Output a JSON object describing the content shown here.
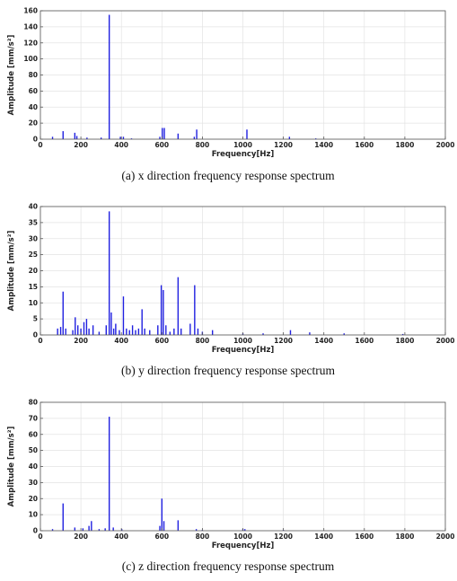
{
  "chart_data": [
    {
      "type": "bar",
      "title": "",
      "xlabel": "Frequency[Hz]",
      "ylabel": "Amplitude [mm/s²]",
      "xlim": [
        0,
        2000
      ],
      "ylim": [
        0,
        160
      ],
      "xticks": [
        0,
        200,
        400,
        600,
        800,
        1000,
        1200,
        1400,
        1600,
        1800,
        2000
      ],
      "yticks": [
        0,
        20,
        40,
        60,
        80,
        100,
        120,
        140,
        160
      ],
      "grid": true,
      "color": "#1f1fe0",
      "caption": "(a) x direction frequency response spectrum",
      "points": [
        {
          "x": 60,
          "y": 3
        },
        {
          "x": 112,
          "y": 10
        },
        {
          "x": 170,
          "y": 8
        },
        {
          "x": 180,
          "y": 4
        },
        {
          "x": 230,
          "y": 2
        },
        {
          "x": 300,
          "y": 2
        },
        {
          "x": 340,
          "y": 155
        },
        {
          "x": 395,
          "y": 3
        },
        {
          "x": 410,
          "y": 3
        },
        {
          "x": 450,
          "y": 1
        },
        {
          "x": 590,
          "y": 3
        },
        {
          "x": 602,
          "y": 14
        },
        {
          "x": 612,
          "y": 14
        },
        {
          "x": 680,
          "y": 7
        },
        {
          "x": 760,
          "y": 3
        },
        {
          "x": 772,
          "y": 12
        },
        {
          "x": 1020,
          "y": 12
        },
        {
          "x": 1230,
          "y": 3
        },
        {
          "x": 1360,
          "y": 1
        }
      ]
    },
    {
      "type": "bar",
      "title": "",
      "xlabel": "Frequency[Hz]",
      "ylabel": "Amplitude [mm/s²]",
      "xlim": [
        0,
        2000
      ],
      "ylim": [
        0,
        40
      ],
      "xticks": [
        0,
        200,
        400,
        600,
        800,
        1000,
        1200,
        1400,
        1600,
        1800,
        2000
      ],
      "yticks": [
        0,
        5,
        10,
        15,
        20,
        25,
        30,
        35,
        40
      ],
      "grid": true,
      "color": "#1f1fe0",
      "caption": "(b) y direction frequency response spectrum",
      "points": [
        {
          "x": 85,
          "y": 2
        },
        {
          "x": 100,
          "y": 2.5
        },
        {
          "x": 112,
          "y": 13.5
        },
        {
          "x": 125,
          "y": 2
        },
        {
          "x": 160,
          "y": 1.5
        },
        {
          "x": 172,
          "y": 5.5
        },
        {
          "x": 185,
          "y": 3
        },
        {
          "x": 200,
          "y": 2
        },
        {
          "x": 215,
          "y": 4
        },
        {
          "x": 228,
          "y": 5
        },
        {
          "x": 240,
          "y": 2
        },
        {
          "x": 260,
          "y": 3
        },
        {
          "x": 290,
          "y": 1
        },
        {
          "x": 325,
          "y": 3
        },
        {
          "x": 340,
          "y": 38.5
        },
        {
          "x": 350,
          "y": 7
        },
        {
          "x": 362,
          "y": 2
        },
        {
          "x": 372,
          "y": 3.5
        },
        {
          "x": 390,
          "y": 1.5
        },
        {
          "x": 410,
          "y": 12
        },
        {
          "x": 425,
          "y": 2
        },
        {
          "x": 440,
          "y": 1.5
        },
        {
          "x": 455,
          "y": 3
        },
        {
          "x": 470,
          "y": 1.5
        },
        {
          "x": 485,
          "y": 2
        },
        {
          "x": 502,
          "y": 8
        },
        {
          "x": 515,
          "y": 2
        },
        {
          "x": 540,
          "y": 1.5
        },
        {
          "x": 580,
          "y": 3
        },
        {
          "x": 597,
          "y": 15.5
        },
        {
          "x": 607,
          "y": 14
        },
        {
          "x": 620,
          "y": 3
        },
        {
          "x": 640,
          "y": 1
        },
        {
          "x": 660,
          "y": 2
        },
        {
          "x": 680,
          "y": 18
        },
        {
          "x": 695,
          "y": 2
        },
        {
          "x": 740,
          "y": 3.5
        },
        {
          "x": 762,
          "y": 15.5
        },
        {
          "x": 778,
          "y": 2
        },
        {
          "x": 800,
          "y": 1
        },
        {
          "x": 850,
          "y": 1.5
        },
        {
          "x": 1000,
          "y": 0.5
        },
        {
          "x": 1100,
          "y": 0.5
        },
        {
          "x": 1235,
          "y": 1.5
        },
        {
          "x": 1330,
          "y": 0.8
        },
        {
          "x": 1500,
          "y": 0.5
        },
        {
          "x": 1790,
          "y": 0.3
        }
      ]
    },
    {
      "type": "bar",
      "title": "",
      "xlabel": "Frequency[Hz]",
      "ylabel": "Amplitude [mm/s²]",
      "xlim": [
        0,
        2000
      ],
      "ylim": [
        0,
        80
      ],
      "xticks": [
        0,
        200,
        400,
        600,
        800,
        1000,
        1200,
        1400,
        1600,
        1800,
        2000
      ],
      "yticks": [
        0,
        10,
        20,
        30,
        40,
        50,
        60,
        70,
        80
      ],
      "grid": true,
      "color": "#1f1fe0",
      "caption": "(c) z direction frequency response spectrum",
      "points": [
        {
          "x": 60,
          "y": 1
        },
        {
          "x": 112,
          "y": 17
        },
        {
          "x": 170,
          "y": 2
        },
        {
          "x": 210,
          "y": 1.5
        },
        {
          "x": 240,
          "y": 3
        },
        {
          "x": 252,
          "y": 6
        },
        {
          "x": 290,
          "y": 1
        },
        {
          "x": 320,
          "y": 1.5
        },
        {
          "x": 340,
          "y": 71
        },
        {
          "x": 360,
          "y": 2
        },
        {
          "x": 402,
          "y": 1
        },
        {
          "x": 590,
          "y": 3
        },
        {
          "x": 600,
          "y": 20
        },
        {
          "x": 610,
          "y": 6
        },
        {
          "x": 680,
          "y": 6.5
        },
        {
          "x": 770,
          "y": 1
        },
        {
          "x": 800,
          "y": 0.5
        },
        {
          "x": 1000,
          "y": 1
        },
        {
          "x": 1010,
          "y": 1
        },
        {
          "x": 1200,
          "y": 0.5
        }
      ]
    }
  ]
}
